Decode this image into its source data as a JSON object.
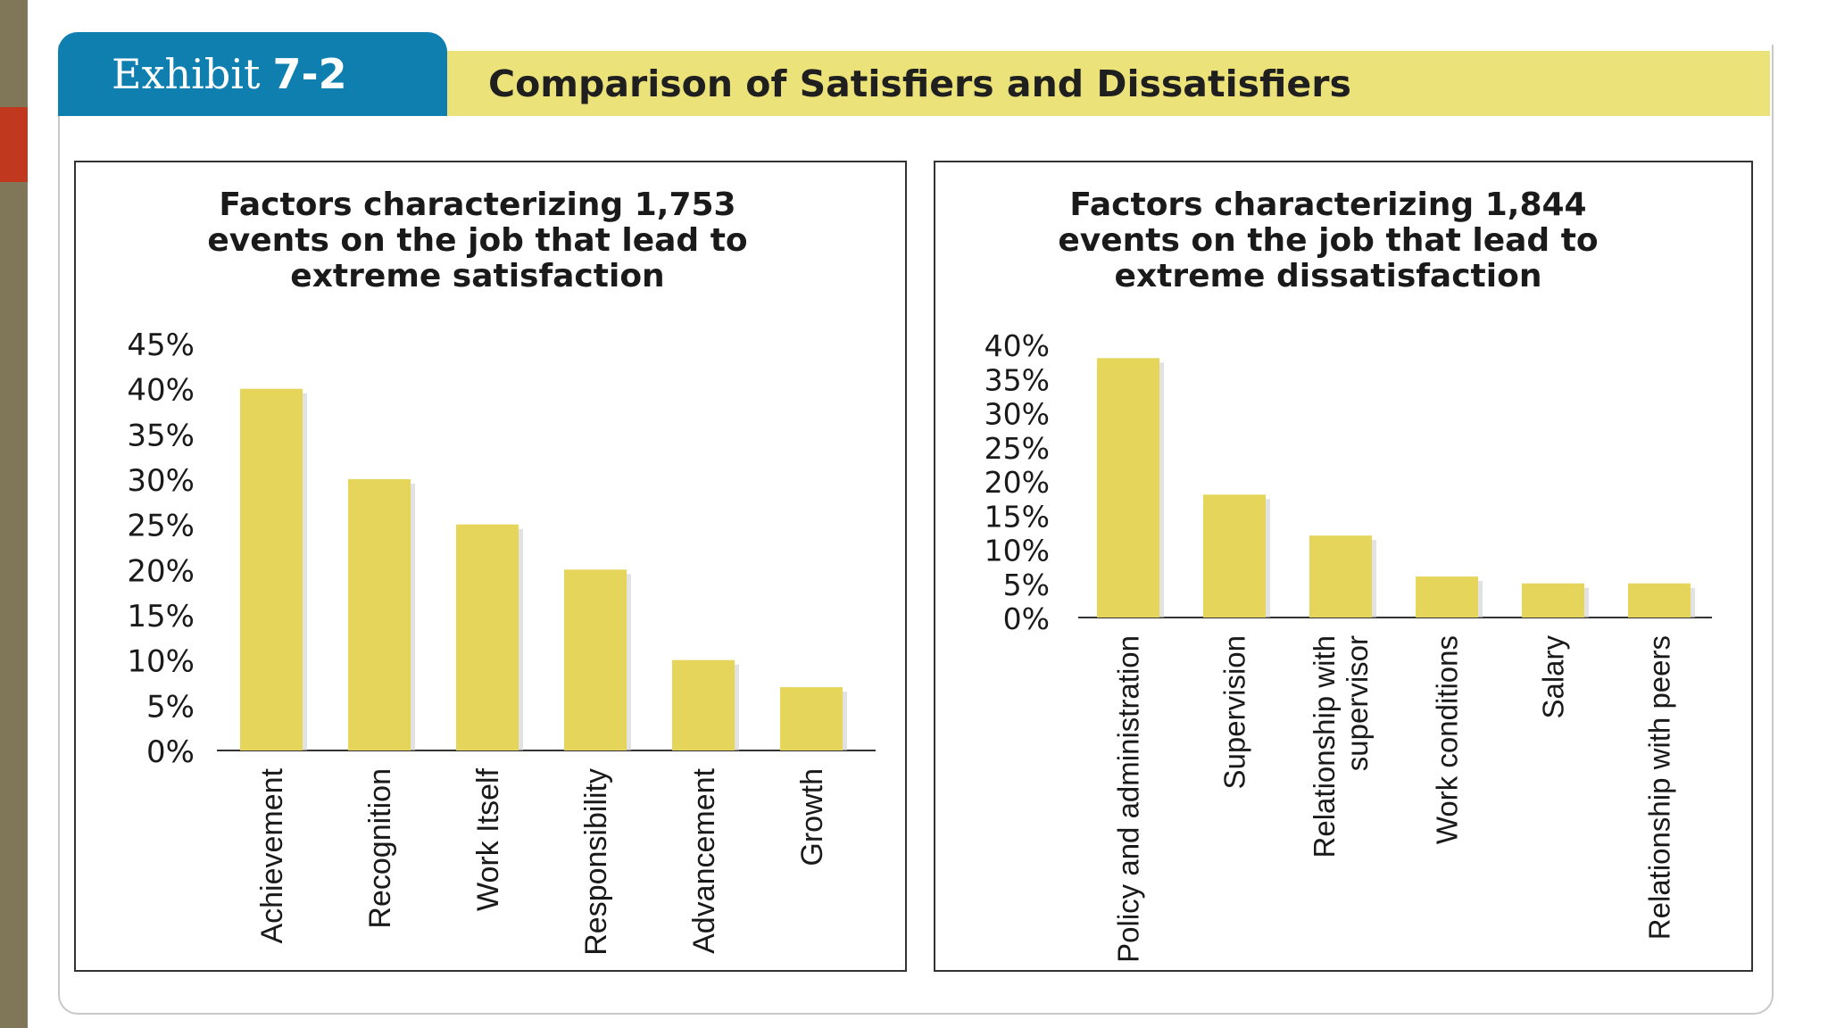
{
  "header": {
    "exhibit_label": "Exhibit",
    "exhibit_number": "7-2",
    "title": "Comparison of Satisfiers and Dissatisfiers"
  },
  "colors": {
    "bar": "#e5d55a",
    "tab": "#0f7fb0",
    "title_bar": "#ece27a"
  },
  "chart_data": [
    {
      "type": "bar",
      "title_lines": [
        "Factors characterizing 1,753",
        "events on the job that lead to",
        "extreme satisfaction"
      ],
      "categories": [
        "Achievement",
        "Recognition",
        "Work Itself",
        "Responsibility",
        "Advancement",
        "Growth"
      ],
      "values": [
        40,
        30,
        25,
        20,
        10,
        7
      ],
      "ylim": [
        0,
        45
      ],
      "yticks": [
        0,
        5,
        10,
        15,
        20,
        25,
        30,
        35,
        40,
        45
      ],
      "ytick_labels": [
        "0%",
        "5%",
        "10%",
        "15%",
        "20%",
        "25%",
        "30%",
        "35%",
        "40%",
        "45%"
      ],
      "xlabel": "",
      "ylabel": "",
      "grid": false
    },
    {
      "type": "bar",
      "title_lines": [
        "Factors characterizing 1,844",
        "events on the job that lead to",
        "extreme dissatisfaction"
      ],
      "categories": [
        "Policy and administration",
        "Supervision",
        "Relationship with\nsupervisor",
        "Work conditions",
        "Salary",
        "Relationship with peers"
      ],
      "values": [
        38,
        18,
        12,
        6,
        5,
        5
      ],
      "ylim": [
        0,
        40
      ],
      "yticks": [
        0,
        5,
        10,
        15,
        20,
        25,
        30,
        35,
        40
      ],
      "ytick_labels": [
        "0%",
        "5%",
        "10%",
        "15%",
        "20%",
        "25%",
        "30%",
        "35%",
        "40%"
      ],
      "xlabel": "",
      "ylabel": "",
      "grid": false
    }
  ]
}
